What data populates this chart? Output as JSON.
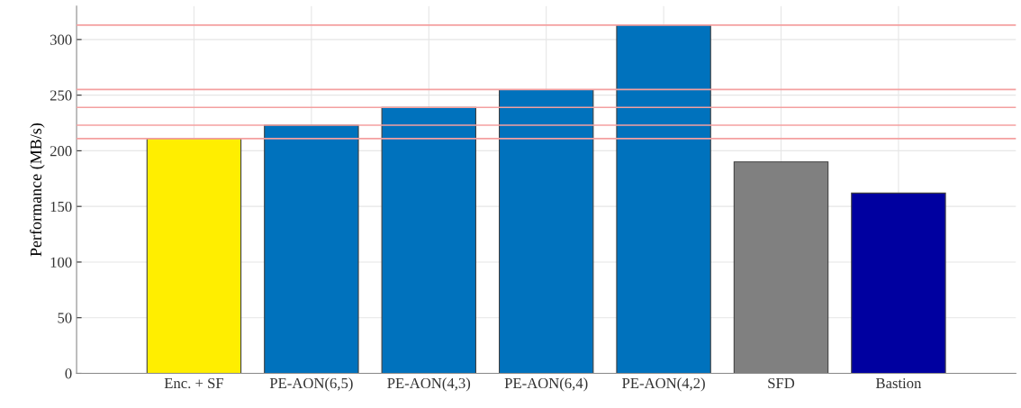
{
  "chart_data": {
    "type": "bar",
    "ylabel": "Performance (MB/s)",
    "categories": [
      "Enc. + SF",
      "PE-AON(6,5)",
      "PE-AON(4,3)",
      "PE-AON(6,4)",
      "PE-AON(4,2)",
      "SFD",
      "Bastion"
    ],
    "values": [
      211,
      223,
      239,
      255,
      313,
      190,
      162
    ],
    "colors": [
      "#ffee00",
      "#0072bd",
      "#0072bd",
      "#0072bd",
      "#0072bd",
      "#808080",
      "#0000a0"
    ],
    "ylim": [
      0,
      330
    ],
    "yticks": [
      0,
      50,
      100,
      150,
      200,
      250,
      300
    ],
    "grid": true,
    "ref_lines": [
      {
        "axis": "y",
        "value": 313,
        "color": "#f4a0a0"
      },
      {
        "axis": "y",
        "value": 255,
        "color": "#f4a0a0"
      },
      {
        "axis": "y",
        "value": 239,
        "color": "#f4a0a0"
      },
      {
        "axis": "y",
        "value": 223,
        "color": "#f4a0a0"
      },
      {
        "axis": "y",
        "value": 211,
        "color": "#f4a0a0"
      }
    ]
  }
}
